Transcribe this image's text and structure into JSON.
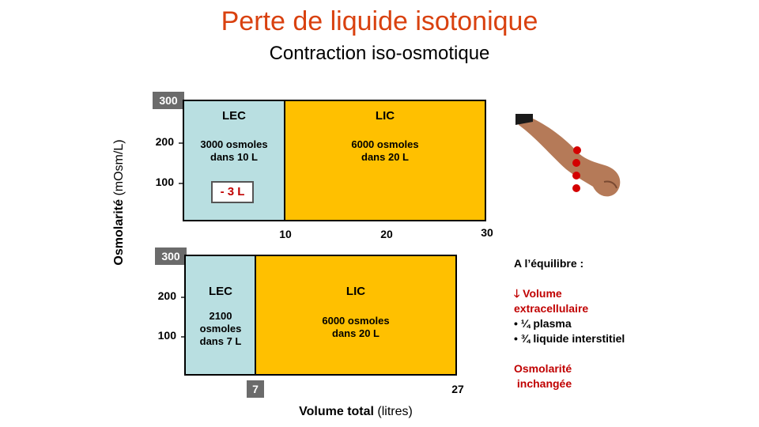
{
  "title": "Perte de liquide isotonique",
  "subtitle": "Contraction iso-osmotique",
  "y_axis": {
    "label_bold": "Osmolarité",
    "label_rest": " (mOsm/L)"
  },
  "x_axis": {
    "label_bold": "Volume total",
    "label_rest": " (litres)"
  },
  "panel_top": {
    "badge": "300",
    "ticks": [
      "200",
      "100"
    ],
    "lec": {
      "title": "LEC",
      "text": "3000 osmoles\ndans 10 L",
      "removed": "- 3 L"
    },
    "lic": {
      "title": "LIC",
      "text": "6000 osmoles\ndans 20 L"
    },
    "x_ticks": [
      "10",
      "20",
      "30"
    ]
  },
  "panel_bottom": {
    "badge": "300",
    "ticks": [
      "200",
      "100"
    ],
    "lec": {
      "title": "LEC",
      "text": "2100\nosmoles\ndans 7 L"
    },
    "lic": {
      "title": "LIC",
      "text": "6000 osmoles\ndans 20 L"
    },
    "x_badge": "7",
    "x_end": "27"
  },
  "equilibrium": {
    "heading": "A l’équilibre  :",
    "arrow": "🡓",
    "line1": "Volume",
    "line2": "extracellulaire",
    "bullet1": "• ¼ plasma",
    "bullet2": "• ¾ liquide interstitiel",
    "osmo1": "Osmolarité",
    "osmo2": " inchangée"
  },
  "colors": {
    "title": "#d9410f",
    "lec": "#b9dfe1",
    "lic": "#ffc000",
    "accent": "#c00000"
  }
}
